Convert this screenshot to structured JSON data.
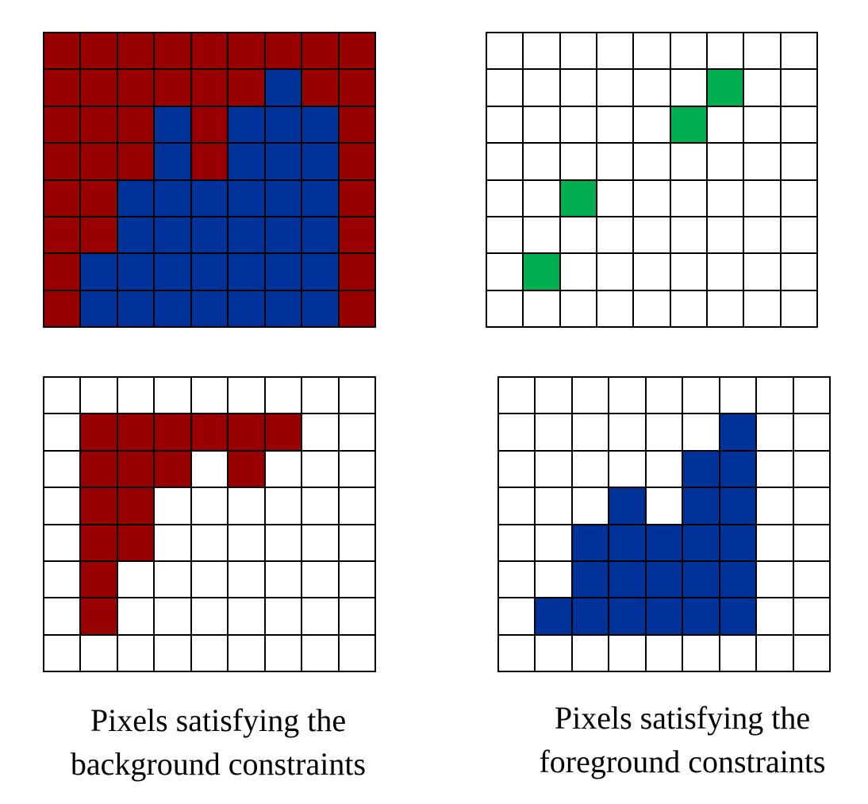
{
  "colors": {
    "R": "#990000",
    "B": "#003399",
    "G": "#00B050",
    "W": "#FFFFFF"
  },
  "grids": {
    "top_left": [
      "RRRRRRRRR",
      "RRRRRRBRR",
      "RRRBRBBBR",
      "RRRBRBBBR",
      "RRBBBBBBR",
      "RRBBBBBBR",
      "RBBBBBBBR",
      "RBBBBBBBR"
    ],
    "top_right": [
      "WWWWWWWWW",
      "WWWWWWGWW",
      "WWWWWGWWW",
      "WWWWWWWWW",
      "WWGWWWWWW",
      "WWWWWWWWW",
      "WGWWWWWWW",
      "WWWWWWWWW"
    ],
    "bottom_left": [
      "WWWWWWWWW",
      "WRRRRRRWW",
      "WRRRWRWWW",
      "WRRWWWWWW",
      "WRRWWWWWW",
      "WRWWWWWWW",
      "WRWWWWWWW",
      "WWWWWWWWW"
    ],
    "bottom_right": [
      "WWWWWWWWW",
      "WWWWWWBWW",
      "WWWWWBBWW",
      "WWWBWBBWW",
      "WWBBBBBWW",
      "WWBBBBBWW",
      "WBBBBBBWW",
      "WWWWWWWWW"
    ]
  },
  "captions": {
    "left": {
      "line1": "Pixels satisfying the",
      "line2": "background constraints"
    },
    "right": {
      "line1": "Pixels satisfying the",
      "line2": "foreground constraints"
    }
  }
}
